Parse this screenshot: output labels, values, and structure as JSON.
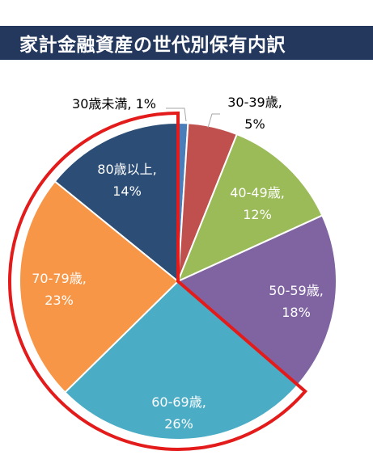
{
  "page": {
    "title": "家計金融資産の世代別保有内訳"
  },
  "chart_data": {
    "type": "pie",
    "title": "家計金融資産の世代別保有内訳",
    "categories": [
      "30歳未満",
      "30-39歳",
      "40-49歳",
      "50-59歳",
      "60-69歳",
      "70-79歳",
      "80歳以上"
    ],
    "values": [
      1,
      5,
      12,
      18,
      26,
      23,
      14
    ],
    "labels": [
      [
        "30歳未満, 1%"
      ],
      [
        "30-39歳,",
        "5%"
      ],
      [
        "40-49歳,",
        "12%"
      ],
      [
        "50-59歳,",
        "18%"
      ],
      [
        "60-69歳,",
        "26%"
      ],
      [
        "70-79歳,",
        "23%"
      ],
      [
        "80歳以上,",
        "14%"
      ]
    ],
    "colors": [
      "#4a7ebb",
      "#c0504d",
      "#9bbb59",
      "#8064a2",
      "#4bacc6",
      "#f79646",
      "#2c4d75"
    ],
    "label_colors": [
      "#000000",
      "#000000",
      "#ffffff",
      "#ffffff",
      "#ffffff",
      "#ffffff",
      "#ffffff"
    ],
    "highlight": {
      "color": "#e31b1b",
      "categories": [
        "60-69歳",
        "70-79歳",
        "80歳以上"
      ]
    },
    "legend": "none"
  }
}
